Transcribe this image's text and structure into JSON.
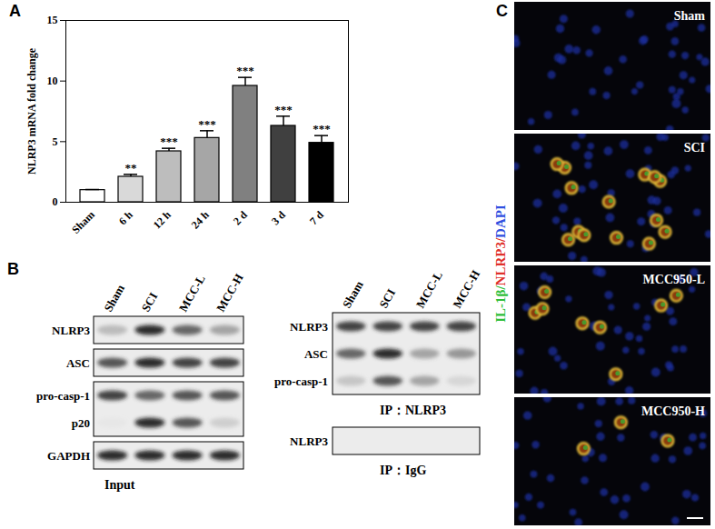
{
  "chart_data": {
    "type": "bar",
    "y_label": "NLRP3 mRNA fold change",
    "categories": [
      "Sham",
      "6 h",
      "12 h",
      "24 h",
      "2 d",
      "3 d",
      "7 d"
    ],
    "values": [
      1.0,
      2.1,
      4.2,
      5.3,
      9.6,
      6.3,
      4.9
    ],
    "error": [
      0.05,
      0.2,
      0.25,
      0.6,
      0.7,
      0.8,
      0.6
    ],
    "annotations": [
      null,
      "**",
      "***",
      "***",
      "***",
      "***",
      "***"
    ],
    "colors": [
      "#ffffff",
      "#d9d9d9",
      "#bdbdbd",
      "#a6a6a6",
      "#808080",
      "#404040",
      "#000000"
    ],
    "ylim": [
      0,
      15
    ],
    "yticks": [
      0,
      5,
      10,
      15
    ]
  },
  "panel_labels": [
    "A",
    "B",
    "C"
  ],
  "panel_b": {
    "column_labels": [
      "Sham",
      "SCI",
      "MCC-L",
      "MCC-H"
    ],
    "blots": [
      {
        "caption": "Input",
        "boxes": [
          {
            "rows": [
              {
                "label": "NLRP3",
                "band_intensity": [
                  0.45,
                  0.9,
                  0.75,
                  0.55
                ]
              }
            ]
          },
          {
            "rows": [
              {
                "label": "ASC",
                "band_intensity": [
                  0.8,
                  0.9,
                  0.85,
                  0.85
                ]
              }
            ]
          },
          {
            "rows": [
              {
                "label": "pro-casp-1",
                "band_intensity": [
                  0.85,
                  0.75,
                  0.8,
                  0.8
                ]
              },
              {
                "label": "p20",
                "band_intensity": [
                  0.15,
                  0.9,
                  0.8,
                  0.35
                ]
              }
            ]
          },
          {
            "rows": [
              {
                "label": "GAPDH",
                "band_intensity": [
                  0.9,
                  0.9,
                  0.9,
                  0.9
                ]
              }
            ]
          }
        ]
      },
      {
        "caption": "IP：NLRP3",
        "boxes": [
          {
            "rows": [
              {
                "label": "NLRP3",
                "band_intensity": [
                  0.85,
                  0.85,
                  0.85,
                  0.85
                ]
              },
              {
                "label": "ASC",
                "band_intensity": [
                  0.75,
                  0.9,
                  0.55,
                  0.6
                ]
              },
              {
                "label": "pro-casp-1",
                "band_intensity": [
                  0.4,
                  0.8,
                  0.55,
                  0.3
                ]
              }
            ]
          }
        ]
      },
      {
        "caption": "IP：IgG",
        "boxes": [
          {
            "rows": [
              {
                "label": "NLRP3",
                "band_intensity": [
                  0,
                  0,
                  0,
                  0
                ]
              }
            ]
          }
        ]
      }
    ]
  },
  "panel_c": {
    "channel_label": [
      {
        "text": "IL-1β/",
        "color": "#2fbf3a"
      },
      {
        "text": "NLRP3/",
        "color": "#e0302a"
      },
      {
        "text": "DAPI",
        "color": "#3050e0"
      }
    ],
    "images": [
      {
        "label": "Sham",
        "dapi_nuclei": 40,
        "double_positive_cells": 0
      },
      {
        "label": "SCI",
        "dapi_nuclei": 40,
        "double_positive_cells": 14
      },
      {
        "label": "MCC950-L",
        "dapi_nuclei": 40,
        "double_positive_cells": 8
      },
      {
        "label": "MCC950-H",
        "dapi_nuclei": 40,
        "double_positive_cells": 3
      }
    ]
  }
}
